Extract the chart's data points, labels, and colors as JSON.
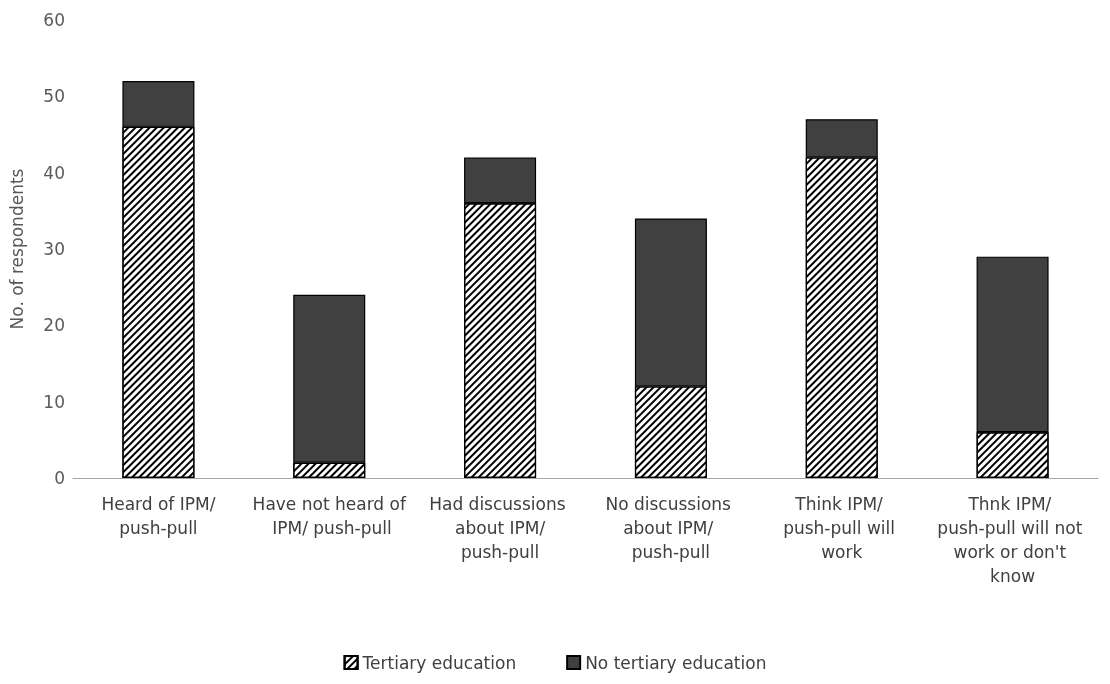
{
  "chart_data": {
    "type": "bar",
    "ylabel": "No. of respondents",
    "categories": [
      "Heard of IPM/push-pull",
      "Have not heard of IPM/ push-pull",
      "Had discussions about IPM/push-pull",
      "No discussions about IPM/ push-pull",
      "Think IPM/ push-pull will work",
      "Thnk IPM/ push-pull will not work or don't know"
    ],
    "series": [
      {
        "name": "Tertiary education",
        "color": "#000000",
        "values": [
          46,
          2,
          36,
          12,
          42,
          6
        ]
      },
      {
        "name": "No tertiary education",
        "color": "#404040",
        "values": [
          6,
          22,
          6,
          22,
          5,
          23
        ]
      }
    ],
    "stacked": true,
    "ylim": [
      0,
      60
    ],
    "yticks": [
      0,
      10,
      20,
      30,
      40,
      50,
      60
    ],
    "grid": false,
    "legend": "bottom"
  }
}
